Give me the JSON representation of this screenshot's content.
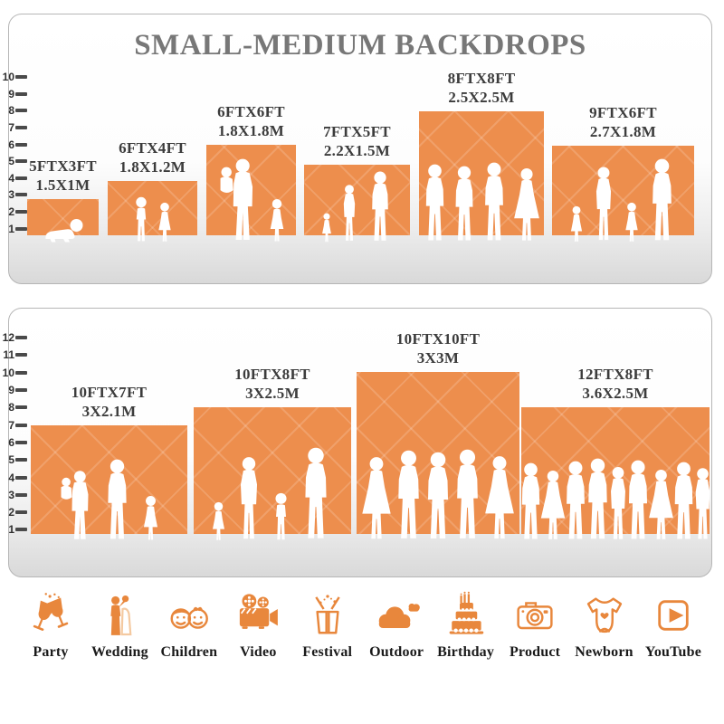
{
  "title": "SMALL-MEDIUM BACKDROPS",
  "colors": {
    "bar_orange": "#ED8E4D",
    "icon_orange": "#E8873C",
    "title_gray": "#777777",
    "label_dark": "#3C3C3C",
    "floor_gray": "#D9D9D9",
    "silhouette_white": "#FFFFFF"
  },
  "chart_data": [
    {
      "type": "bar",
      "title": "SMALL-MEDIUM BACKDROPS",
      "unit": "feet",
      "ylim": [
        0,
        10
      ],
      "yticks": [
        1,
        2,
        3,
        4,
        5,
        6,
        7,
        8,
        9,
        10
      ],
      "bars": [
        {
          "label_ft": "5FTX3FT",
          "label_m": "1.5X1M",
          "width_ft": 5,
          "height_ft": 3,
          "figures": [
            "crawling-baby-silhouette"
          ]
        },
        {
          "label_ft": "6FTX4FT",
          "label_m": "1.8X1.2M",
          "width_ft": 6,
          "height_ft": 4,
          "figures": [
            "boy-silhouette",
            "girl-silhouette"
          ]
        },
        {
          "label_ft": "6FTX6FT",
          "label_m": "1.8X1.8M",
          "width_ft": 6,
          "height_ft": 6,
          "figures": [
            "mother-holding-child-silhouette",
            "girl-silhouette"
          ]
        },
        {
          "label_ft": "7FTX5FT",
          "label_m": "2.2X1.5M",
          "width_ft": 7,
          "height_ft": 5,
          "figures": [
            "toddler-silhouette",
            "woman-silhouette",
            "man-silhouette"
          ]
        },
        {
          "label_ft": "8FTX8FT",
          "label_m": "2.5X2.5M",
          "width_ft": 8,
          "height_ft": 8,
          "figures": [
            "man-silhouette",
            "man-silhouette",
            "man-silhouette",
            "woman-dress-silhouette"
          ]
        },
        {
          "label_ft": "9FTX6FT",
          "label_m": "2.7X1.8M",
          "width_ft": 9,
          "height_ft": 6,
          "figures": [
            "girl-silhouette",
            "woman-silhouette",
            "girl-silhouette",
            "man-silhouette"
          ]
        }
      ]
    },
    {
      "type": "bar",
      "title": "",
      "unit": "feet",
      "ylim": [
        0,
        12
      ],
      "yticks": [
        1,
        2,
        3,
        4,
        5,
        6,
        7,
        8,
        9,
        10,
        11,
        12
      ],
      "bars": [
        {
          "label_ft": "10FTX7FT",
          "label_m": "3X2.1M",
          "width_ft": 10,
          "height_ft": 7,
          "figures": [
            "mother-holding-child-silhouette",
            "man-silhouette",
            "girl-silhouette"
          ]
        },
        {
          "label_ft": "10FTX8FT",
          "label_m": "3X2.5M",
          "width_ft": 10,
          "height_ft": 8,
          "figures": [
            "toddler-silhouette",
            "woman-silhouette",
            "boy-silhouette",
            "man-silhouette"
          ]
        },
        {
          "label_ft": "10FTX10FT",
          "label_m": "3X3M",
          "width_ft": 10,
          "height_ft": 10,
          "figures": [
            "woman-dress-silhouette",
            "man-silhouette",
            "man-silhouette",
            "man-silhouette",
            "woman-dress-silhouette"
          ]
        },
        {
          "label_ft": "12FTX8FT",
          "label_m": "3.6X2.5M",
          "width_ft": 12,
          "height_ft": 8,
          "figures": [
            "man-silhouette",
            "woman-dress-silhouette",
            "man-silhouette",
            "man-silhouette",
            "woman-silhouette",
            "man-silhouette",
            "woman-dress-silhouette",
            "man-silhouette",
            "woman-silhouette"
          ]
        }
      ]
    }
  ],
  "categories": [
    {
      "label": "Party",
      "icon": "party-icon"
    },
    {
      "label": "Wedding",
      "icon": "wedding-icon"
    },
    {
      "label": "Children",
      "icon": "children-icon"
    },
    {
      "label": "Video",
      "icon": "video-icon"
    },
    {
      "label": "Festival",
      "icon": "festival-icon"
    },
    {
      "label": "Outdoor",
      "icon": "outdoor-icon"
    },
    {
      "label": "Birthday",
      "icon": "birthday-icon"
    },
    {
      "label": "Product",
      "icon": "product-icon"
    },
    {
      "label": "Newborn",
      "icon": "newborn-icon"
    },
    {
      "label": "YouTube",
      "icon": "youtube-icon"
    }
  ]
}
